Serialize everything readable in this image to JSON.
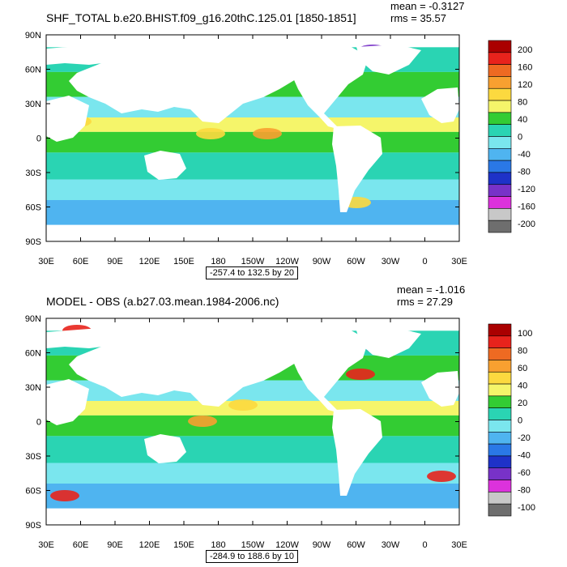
{
  "panels": [
    {
      "title": "SHF_TOTAL b.e20.BHIST.f09_g16.20thC.125.01 [1850-1851]",
      "mean": "mean = -0.3127",
      "rms": "rms = 35.57",
      "range_label": "-257.4 to 132.5 by 20",
      "colorbar_labels": [
        "200",
        "160",
        "120",
        "80",
        "40",
        "0",
        "-40",
        "-80",
        "-120",
        "-160",
        "-200"
      ]
    },
    {
      "title": "MODEL - OBS (a.b27.03.mean.1984-2006.nc)",
      "mean": "mean = -1.016",
      "rms": "rms = 27.29",
      "range_label": "-284.9 to 188.6 by 10",
      "colorbar_labels": [
        "100",
        "80",
        "60",
        "40",
        "20",
        "0",
        "-20",
        "-40",
        "-60",
        "-80",
        "-100"
      ]
    }
  ],
  "lat_labels": [
    "90N",
    "60N",
    "30N",
    "0",
    "30S",
    "60S",
    "90S"
  ],
  "lon_labels": [
    "30E",
    "60E",
    "90E",
    "120E",
    "150E",
    "180",
    "150W",
    "120W",
    "90W",
    "60W",
    "30W",
    "0",
    "30E"
  ],
  "colorbar_colors": [
    "#aa0000",
    "#e8231c",
    "#ee6a22",
    "#f8a030",
    "#fcd93f",
    "#f5f56a",
    "#33cc33",
    "#2ad4b3",
    "#7ae6ee",
    "#4fb4f0",
    "#2a78e6",
    "#1e32c8",
    "#7832c8",
    "#dc32dc",
    "#c8c8c8",
    "#6e6e6e"
  ]
}
